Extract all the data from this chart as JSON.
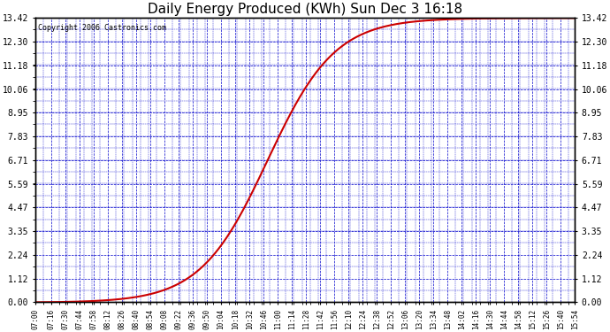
{
  "title": "Daily Energy Produced (KWh) Sun Dec 3 16:18",
  "copyright_text": "Copyright 2006 Castronics.com",
  "line_color": "#cc0000",
  "background_color": "#ffffff",
  "plot_bg_color": "#ffffff",
  "grid_color": "#0000cc",
  "tick_label_color": "#000000",
  "title_color": "#000000",
  "ylim": [
    0.0,
    13.42
  ],
  "yticks": [
    0.0,
    1.12,
    2.24,
    3.35,
    4.47,
    5.59,
    6.71,
    7.83,
    8.95,
    10.06,
    11.18,
    12.3,
    13.42
  ],
  "x_labels": [
    "07:00",
    "07:16",
    "07:30",
    "07:44",
    "07:58",
    "08:12",
    "08:26",
    "08:40",
    "08:54",
    "09:08",
    "09:22",
    "09:36",
    "09:50",
    "10:04",
    "10:18",
    "10:32",
    "10:46",
    "11:00",
    "11:14",
    "11:28",
    "11:42",
    "11:56",
    "12:10",
    "12:24",
    "12:38",
    "12:52",
    "13:06",
    "13:20",
    "13:34",
    "13:48",
    "14:02",
    "14:16",
    "14:30",
    "14:44",
    "14:58",
    "15:12",
    "15:26",
    "15:40",
    "15:54"
  ],
  "max_value": 13.42,
  "line_width": 1.5,
  "sigmoid_t0": 230,
  "sigmoid_k": 0.03
}
